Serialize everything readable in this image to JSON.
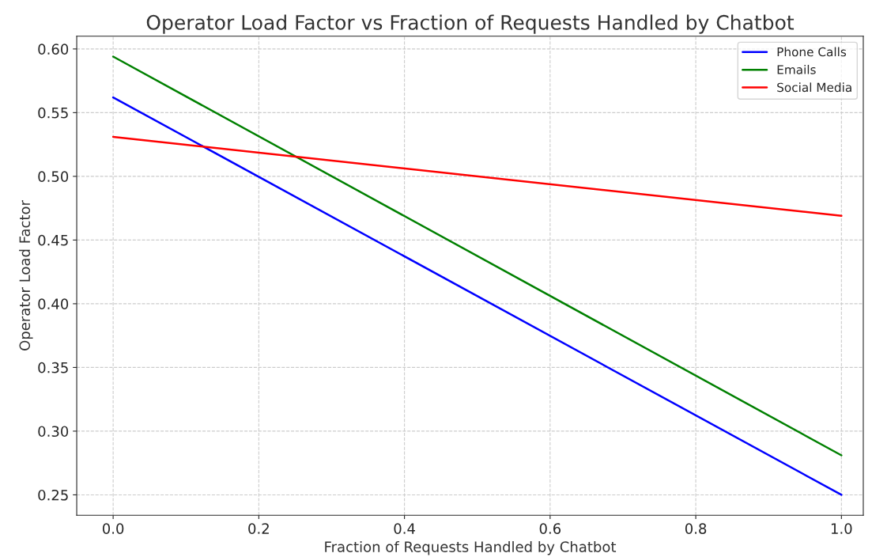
{
  "chart_data": {
    "type": "line",
    "title": "Operator Load Factor vs Fraction of Requests Handled by Chatbot",
    "xlabel": "Fraction of Requests Handled by Chatbot",
    "ylabel": "Operator Load Factor",
    "x": [
      0.0,
      1.0
    ],
    "series": [
      {
        "name": "Phone Calls",
        "color": "#0000ff",
        "values": [
          0.562,
          0.25
        ]
      },
      {
        "name": "Emails",
        "color": "#008000",
        "values": [
          0.594,
          0.281
        ]
      },
      {
        "name": "Social Media",
        "color": "#ff0000",
        "values": [
          0.531,
          0.469
        ]
      }
    ],
    "xlim": [
      -0.05,
      1.03
    ],
    "xticks": [
      {
        "value": 0,
        "label": "0.0"
      },
      0.2,
      0.4,
      0.6,
      0.8,
      {
        "value": 1,
        "label": "1.0"
      }
    ],
    "ylim": [
      0.234,
      0.61
    ],
    "yticks": [
      0.25,
      {
        "value": 0.3,
        "label": "0.30"
      },
      0.35,
      {
        "value": 0.4,
        "label": "0.40"
      },
      0.45,
      {
        "value": 0.5,
        "label": "0.50"
      },
      0.55,
      {
        "value": 0.6,
        "label": "0.60"
      }
    ],
    "grid": true,
    "legend": "top right",
    "line_style": "solid",
    "marker": "none"
  }
}
